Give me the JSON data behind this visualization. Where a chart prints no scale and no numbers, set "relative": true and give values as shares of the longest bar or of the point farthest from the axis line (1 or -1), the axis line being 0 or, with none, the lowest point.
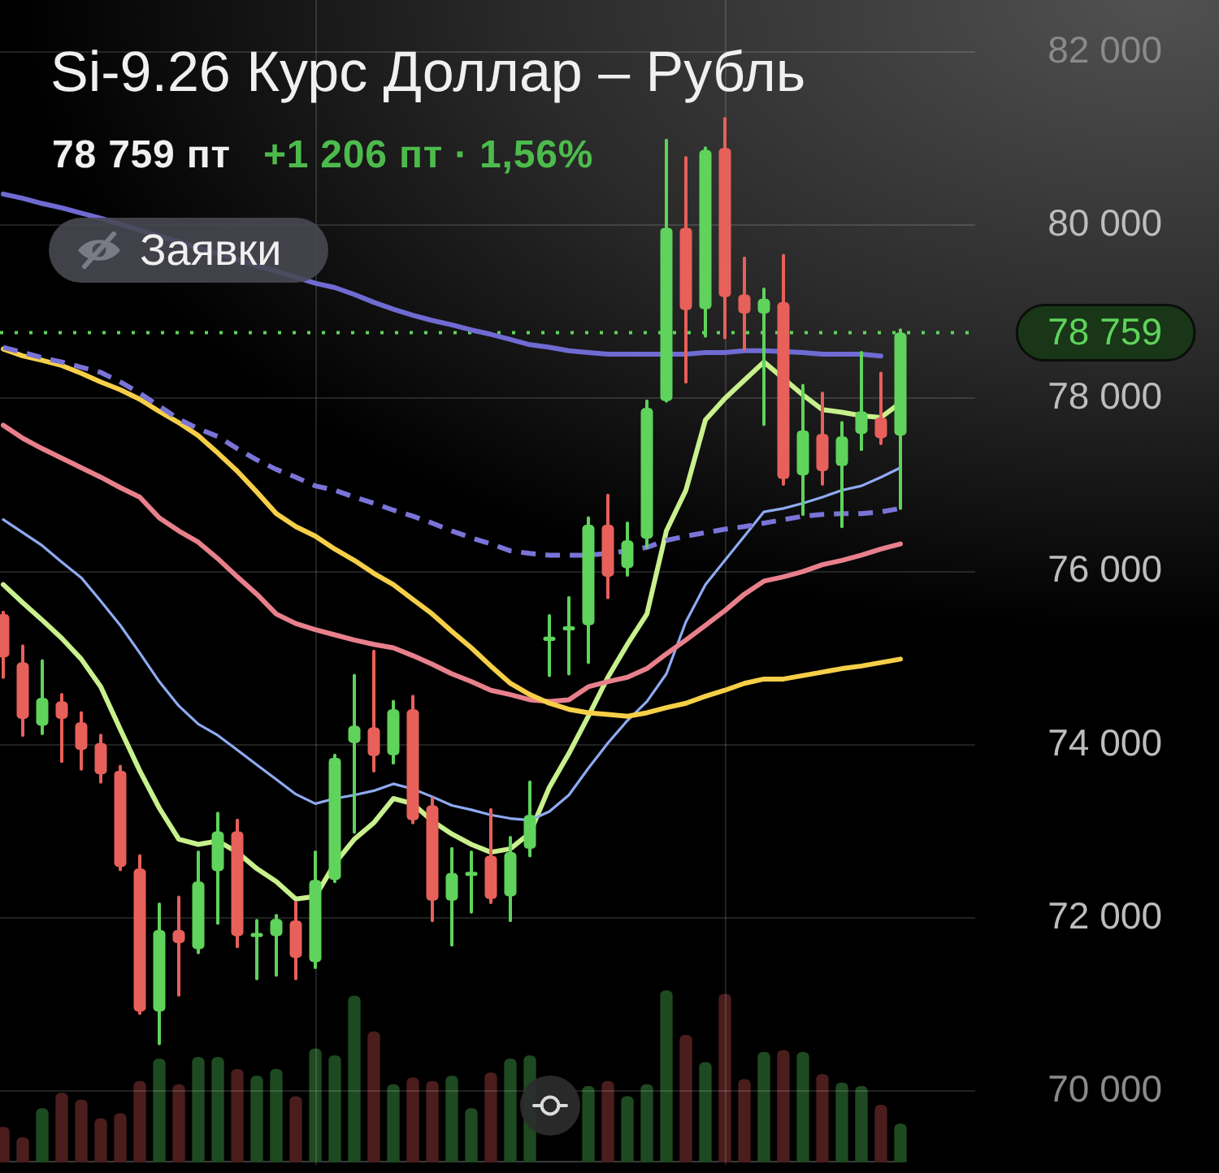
{
  "chart_data": [
    {
      "type": "candlestick",
      "title": "Si-9.26 Курс Доллар – Рубль",
      "subtitle": "78 759 пт",
      "annotations": [
        "+1 206 пт · 1,56%",
        "Заявки"
      ],
      "categories": [
        null,
        null,
        null,
        null,
        null,
        null,
        null,
        null,
        null,
        null,
        null,
        null,
        null,
        null,
        null,
        null,
        null,
        null,
        null,
        null,
        null,
        null,
        null,
        null,
        null,
        null,
        null,
        null,
        null,
        null,
        null,
        null,
        null,
        null,
        null,
        null,
        null,
        null,
        null,
        null,
        null,
        null,
        null,
        null,
        null,
        null,
        null
      ],
      "ohlc": [
        [
          75510,
          75530,
          74780,
          75010
        ],
        [
          74950,
          75140,
          74110,
          74300
        ],
        [
          74220,
          74970,
          74130,
          74540
        ],
        [
          74500,
          74580,
          73810,
          74300
        ],
        [
          74260,
          74370,
          73720,
          73940
        ],
        [
          74020,
          74110,
          73570,
          73660
        ],
        [
          73700,
          73750,
          72560,
          72590
        ],
        [
          72570,
          72720,
          70900,
          70920
        ],
        [
          70920,
          72160,
          70550,
          71860
        ],
        [
          71860,
          72240,
          71110,
          71710
        ],
        [
          71640,
          72760,
          71600,
          72420
        ],
        [
          72540,
          73210,
          71940,
          73000
        ],
        [
          73000,
          73130,
          71670,
          71790
        ],
        [
          71790,
          71970,
          71300,
          71820
        ],
        [
          71790,
          72030,
          71340,
          71990
        ],
        [
          71970,
          72180,
          71300,
          71540
        ],
        [
          71490,
          72760,
          71430,
          72440
        ],
        [
          72440,
          73880,
          72420,
          73850
        ],
        [
          74020,
          74800,
          72990,
          74220
        ],
        [
          74200,
          75080,
          73700,
          73870
        ],
        [
          73880,
          74500,
          73790,
          74410
        ],
        [
          74410,
          74560,
          73100,
          73130
        ],
        [
          73300,
          73380,
          71970,
          72200
        ],
        [
          72200,
          72800,
          71690,
          72520
        ],
        [
          72500,
          72760,
          72070,
          72520
        ],
        [
          72720,
          73250,
          72180,
          72220
        ],
        [
          72250,
          72930,
          71970,
          72760
        ],
        [
          72800,
          73570,
          72720,
          73190
        ],
        [
          75200,
          75490,
          74800,
          75250
        ],
        [
          75330,
          75700,
          74820,
          75360
        ],
        [
          75380,
          76620,
          74950,
          76540
        ],
        [
          76540,
          76880,
          75700,
          75940
        ],
        [
          76040,
          76560,
          75960,
          76360
        ],
        [
          76380,
          77970,
          76280,
          77890
        ],
        [
          77970,
          80980,
          77970,
          79970
        ],
        [
          79970,
          80780,
          78190,
          79020
        ],
        [
          79030,
          80890,
          78720,
          80870
        ],
        [
          80890,
          81230,
          78700,
          79170
        ],
        [
          79200,
          79620,
          78570,
          78980
        ],
        [
          78980,
          79260,
          77700,
          79150
        ],
        [
          79110,
          79650,
          77010,
          77070
        ],
        [
          77110,
          78150,
          76660,
          77630
        ],
        [
          77590,
          78060,
          77010,
          77160
        ],
        [
          77220,
          77720,
          76520,
          77560
        ],
        [
          77590,
          78530,
          77410,
          77850
        ],
        [
          77780,
          78290,
          77480,
          77540
        ],
        [
          77570,
          78790,
          76730,
          78759
        ]
      ],
      "colors": [
        "#e8605a",
        "#e8605a",
        "#5fd35b",
        "#e8605a",
        "#e8605a",
        "#e8605a",
        "#e8605a",
        "#e8605a",
        "#5fd35b",
        "#e8605a",
        "#5fd35b",
        "#5fd35b",
        "#e8605a",
        "#5fd35b",
        "#5fd35b",
        "#e8605a",
        "#5fd35b",
        "#5fd35b",
        "#5fd35b",
        "#e8605a",
        "#5fd35b",
        "#e8605a",
        "#e8605a",
        "#5fd35b",
        "#5fd35b",
        "#e8605a",
        "#5fd35b",
        "#5fd35b",
        "#5fd35b",
        "#5fd35b",
        "#5fd35b",
        "#e8605a",
        "#5fd35b",
        "#5fd35b",
        "#5fd35b",
        "#e8605a",
        "#5fd35b",
        "#e8605a",
        "#e8605a",
        "#5fd35b",
        "#e8605a",
        "#5fd35b",
        "#e8605a",
        "#5fd35b",
        "#5fd35b",
        "#e8605a",
        "#5fd35b"
      ],
      "series": [
        {
          "type": "line",
          "color": "#6f6bd3",
          "values": [
            80360,
            80310,
            80250,
            80200,
            80140,
            80080,
            null,
            null,
            null,
            null,
            null,
            null,
            null,
            null,
            null,
            null,
            79330,
            79280,
            79200,
            79110,
            79030,
            78960,
            78900,
            78850,
            78790,
            78740,
            78680,
            78620,
            78590,
            78550,
            78530,
            78510,
            78510,
            78510,
            78510,
            78510,
            78530,
            78530,
            78550,
            78550,
            78540,
            78530,
            78510,
            78510,
            78510,
            78490,
            null
          ]
        },
        {
          "type": "line",
          "color": "#7a74d8",
          "line_style": "dashed",
          "values": [
            78590,
            78530,
            78470,
            78420,
            78360,
            78300,
            78190,
            78060,
            77910,
            77760,
            77650,
            77560,
            77420,
            77290,
            77180,
            77090,
            76990,
            76940,
            76860,
            76790,
            76710,
            76640,
            76560,
            76470,
            76390,
            76320,
            76240,
            76210,
            76190,
            76190,
            76190,
            76210,
            76240,
            76280,
            76360,
            76410,
            76450,
            76490,
            76520,
            76560,
            76600,
            76640,
            76660,
            76670,
            76670,
            76690,
            76730
          ]
        },
        {
          "type": "line",
          "color": "#f6cf48",
          "values": [
            78570,
            78490,
            78440,
            78380,
            78290,
            78190,
            78100,
            77990,
            77850,
            77720,
            77570,
            77370,
            77160,
            76920,
            76670,
            76520,
            76410,
            76260,
            76130,
            75980,
            75850,
            75680,
            75510,
            75310,
            75120,
            74910,
            74710,
            74580,
            74480,
            74410,
            74370,
            74350,
            74330,
            74370,
            74430,
            74480,
            74560,
            74630,
            74710,
            74760,
            74760,
            74800,
            74840,
            74880,
            74910,
            74950,
            74990
          ]
        },
        {
          "type": "line",
          "color": "#e8808c",
          "values": [
            77690,
            77540,
            77420,
            77310,
            77200,
            77090,
            76970,
            76860,
            76620,
            76470,
            76340,
            76150,
            75940,
            75740,
            75510,
            75400,
            75330,
            75270,
            75210,
            75160,
            75120,
            75030,
            74930,
            74820,
            74730,
            74630,
            74580,
            74520,
            74500,
            74520,
            74670,
            74730,
            74780,
            74880,
            75050,
            75210,
            75380,
            75550,
            75740,
            75890,
            75940,
            76000,
            76080,
            76130,
            76190,
            76260,
            76320
          ]
        },
        {
          "type": "line",
          "color": "#8eaaf2",
          "values": [
            76600,
            76450,
            76300,
            76110,
            75930,
            75660,
            75380,
            75060,
            74730,
            74450,
            74240,
            74110,
            73940,
            73770,
            73600,
            73430,
            73320,
            73380,
            73420,
            73470,
            73550,
            73490,
            73400,
            73300,
            73250,
            73190,
            73150,
            73130,
            73230,
            73420,
            73730,
            74020,
            74280,
            74500,
            74820,
            75420,
            75850,
            76130,
            76410,
            76690,
            76730,
            76790,
            76860,
            76940,
            76990,
            77090,
            77200
          ]
        },
        {
          "type": "line",
          "color": "#c8f08c",
          "values": [
            75850,
            75640,
            75440,
            75230,
            74990,
            74670,
            74180,
            73700,
            73270,
            72910,
            72850,
            72890,
            72760,
            72570,
            72420,
            72220,
            72250,
            72630,
            72910,
            73100,
            73380,
            73320,
            73120,
            72970,
            72850,
            72760,
            72800,
            72980,
            73510,
            73900,
            74330,
            74780,
            75160,
            75510,
            76470,
            76940,
            77750,
            78000,
            78210,
            78420,
            78230,
            78040,
            77870,
            77840,
            77800,
            77780,
            77950
          ]
        }
      ],
      "ylim": [
        69150,
        82600
      ],
      "yticks": [
        {
          "value": 70000,
          "label": "70 000"
        },
        {
          "value": 72000,
          "label": "72 000"
        },
        {
          "value": 74000,
          "label": "74 000"
        },
        {
          "value": 76000,
          "label": "76 000"
        },
        {
          "value": 78000,
          "label": "78 000"
        },
        {
          "value": 80000,
          "label": "80 000"
        },
        {
          "value": 82000,
          "label": "82 000"
        }
      ],
      "ref_lines": [
        {
          "axis": "y",
          "value": 78759,
          "label": "78 759",
          "color": "#5fd35b",
          "line_style": "dotted"
        }
      ],
      "grid": "y",
      "tick_labels": "y"
    },
    {
      "type": "bar",
      "relative": true,
      "categories": [
        null,
        null,
        null,
        null,
        null,
        null,
        null,
        null,
        null,
        null,
        null,
        null,
        null,
        null,
        null,
        null,
        null,
        null,
        null,
        null,
        null,
        null,
        null,
        null,
        null,
        null,
        null,
        null,
        null,
        null,
        null,
        null,
        null,
        null,
        null,
        null,
        null,
        null,
        null,
        null,
        null,
        null,
        null,
        null,
        null,
        null,
        null
      ],
      "values": [
        0.2,
        0.14,
        0.31,
        0.4,
        0.36,
        0.25,
        0.28,
        0.47,
        0.6,
        0.45,
        0.61,
        0.61,
        0.54,
        0.5,
        0.54,
        0.38,
        0.66,
        0.62,
        0.97,
        0.76,
        0.45,
        0.49,
        0.47,
        0.5,
        0.31,
        0.52,
        0.6,
        0.62,
        null,
        null,
        0.44,
        0.47,
        0.38,
        0.45,
        1,
        0.74,
        0.58,
        0.98,
        0.48,
        0.64,
        0.65,
        0.64,
        0.51,
        0.46,
        0.44,
        0.33,
        0.22
      ],
      "colors": [
        "#4b1d1d",
        "#4b1d1d",
        "#1e4a21",
        "#4b1d1d",
        "#4b1d1d",
        "#4b1d1d",
        "#4b1d1d",
        "#4b1d1d",
        "#1e4a21",
        "#4b1d1d",
        "#1e4a21",
        "#1e4a21",
        "#4b1d1d",
        "#1e4a21",
        "#1e4a21",
        "#4b1d1d",
        "#1e4a21",
        "#1e4a21",
        "#1e4a21",
        "#4b1d1d",
        "#1e4a21",
        "#4b1d1d",
        "#4b1d1d",
        "#1e4a21",
        "#1e4a21",
        "#4b1d1d",
        "#1e4a21",
        "#1e4a21",
        "#1e4a21",
        "#1e4a21",
        "#1e4a21",
        "#4b1d1d",
        "#1e4a21",
        "#1e4a21",
        "#1e4a21",
        "#4b1d1d",
        "#1e4a21",
        "#4b1d1d",
        "#4b1d1d",
        "#1e4a21",
        "#4b1d1d",
        "#1e4a21",
        "#4b1d1d",
        "#1e4a21",
        "#1e4a21",
        "#4b1d1d",
        "#1e4a21"
      ]
    }
  ]
}
